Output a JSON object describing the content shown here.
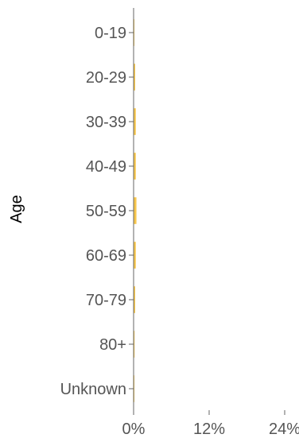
{
  "chart_data": {
    "type": "bar",
    "orientation": "horizontal",
    "categories": [
      "0-19",
      "20-29",
      "30-39",
      "40-49",
      "50-59",
      "60-69",
      "70-79",
      "80+",
      "Unknown"
    ],
    "values": [
      0.1,
      0.25,
      0.35,
      0.35,
      0.45,
      0.35,
      0.25,
      0.15,
      0.05
    ],
    "xlim": [
      0,
      24
    ],
    "x_ticks": [
      "0%",
      "12%",
      "24%"
    ],
    "x_tick_values": [
      0,
      12,
      24
    ],
    "xlabel": "",
    "ylabel": "Age",
    "bar_color": "#f7c64b",
    "grid": false
  }
}
